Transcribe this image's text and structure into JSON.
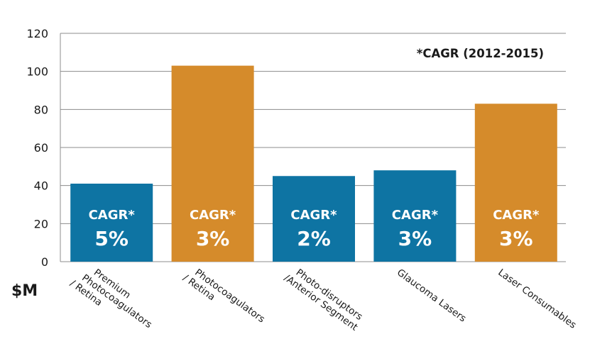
{
  "chart_data": {
    "type": "bar",
    "categories": [
      "Premium\nPhotocoagulators\n/ Retina",
      "Photocoagulators\n/ Retina",
      "Photo-disruptors\n/Anterior Segment",
      "Glaucoma Lasers",
      "Laser Consumables"
    ],
    "values": [
      41,
      103,
      45,
      48,
      83
    ],
    "bar_colors": [
      "#0e74a3",
      "#d58b2b",
      "#0e74a3",
      "#0e74a3",
      "#d58b2b"
    ],
    "bar_label_prefix": [
      "CAGR*",
      "CAGR*",
      "CAGR*",
      "CAGR*",
      "CAGR*"
    ],
    "bar_label_value": [
      "5%",
      "3%",
      "2%",
      "3%",
      "3%"
    ],
    "ylabel": "$M",
    "ylim": [
      0,
      120
    ],
    "yticks": [
      0,
      20,
      40,
      60,
      80,
      100,
      120
    ],
    "grid": true,
    "annotation": "*CAGR (2012-2015)"
  }
}
